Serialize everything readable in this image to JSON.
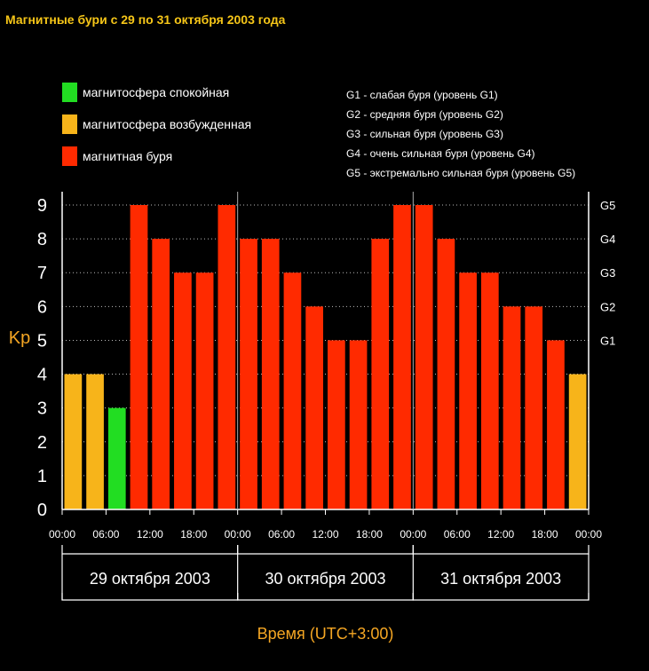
{
  "title": "Магнитные бури с 29 по 31 октября 2003 года",
  "legend": [
    {
      "label": "магнитосфера спокойная",
      "color": "#22dd22"
    },
    {
      "label": "магнитосфера возбужденная",
      "color": "#f7b41a"
    },
    {
      "label": "магнитная буря",
      "color": "#ff2a00"
    }
  ],
  "storm_levels": [
    "G1 - слабая буря (уровень G1)",
    "G2 - средняя буря (уровень G2)",
    "G3 - сильная буря (уровень G3)",
    "G4 - очень сильная буря (уровень G4)",
    "G5 - экстремально сильная буря (уровень G5)"
  ],
  "chart_data": {
    "type": "bar",
    "title": "Магнитные бури с 29 по 31 октября 2003 года",
    "ylabel": "Kp",
    "xlabel": "Время (UTC+3:00)",
    "ylim": [
      0,
      9
    ],
    "y_ticks": [
      "0",
      "1",
      "2",
      "3",
      "4",
      "5",
      "6",
      "7",
      "8",
      "9"
    ],
    "right_ticks": [
      {
        "label": "G1",
        "value": 5
      },
      {
        "label": "G2",
        "value": 6
      },
      {
        "label": "G3",
        "value": 7
      },
      {
        "label": "G4",
        "value": 8
      },
      {
        "label": "G5",
        "value": 9
      }
    ],
    "time_ticks": [
      "00:00",
      "06:00",
      "12:00",
      "18:00",
      "00:00",
      "06:00",
      "12:00",
      "18:00",
      "00:00",
      "06:00",
      "12:00",
      "18:00",
      "00:00"
    ],
    "days": [
      "29 октября 2003",
      "30 октября 2003",
      "31 октября 2003"
    ],
    "values": [
      4,
      4,
      3,
      9,
      8,
      7,
      7,
      9,
      8,
      8,
      7,
      6,
      5,
      5,
      8,
      9,
      9,
      8,
      7,
      7,
      6,
      6,
      5,
      4
    ],
    "status": [
      "excited",
      "excited",
      "quiet",
      "storm",
      "storm",
      "storm",
      "storm",
      "storm",
      "storm",
      "storm",
      "storm",
      "storm",
      "storm",
      "storm",
      "storm",
      "storm",
      "storm",
      "storm",
      "storm",
      "storm",
      "storm",
      "storm",
      "storm",
      "excited"
    ],
    "colors": {
      "quiet": "#22dd22",
      "excited": "#f7b41a",
      "storm": "#ff2a00"
    },
    "grid": true
  }
}
